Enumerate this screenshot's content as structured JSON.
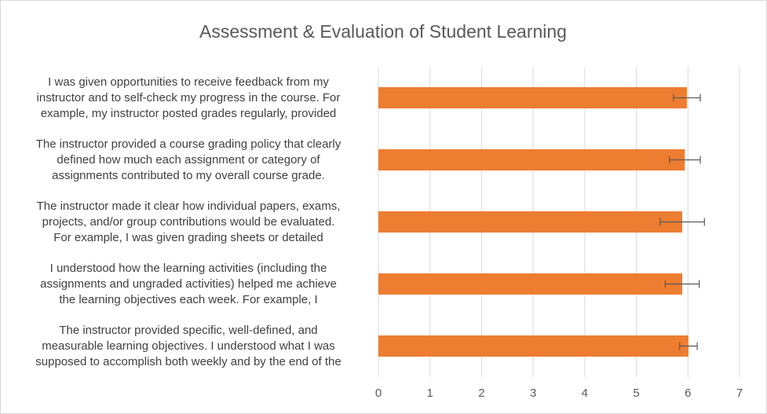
{
  "chart_data": {
    "type": "bar",
    "orientation": "horizontal",
    "title": "Assessment & Evaluation of Student Learning",
    "categories": [
      "I was given opportunities to receive feedback from my\ninstructor and to self-check my progress in the course. For\nexample, my instructor posted grades regularly, provided",
      "The instructor provided a course grading policy that clearly\ndefined how much each assignment or category of\nassignments contributed to my overall course grade.",
      "The instructor made it clear how individual papers, exams,\nprojects, and/or group contributions would be evaluated.\nFor example, I was given grading sheets or detailed",
      "I understood how the learning activities (including the\nassignments and ungraded activities) helped me achieve\nthe learning objectives each week. For example, I",
      "The instructor provided specific, well-defined, and\nmeasurable learning objectives. I understood what I was\nsupposed to accomplish both weekly and by the end of the"
    ],
    "values": [
      5.98,
      5.94,
      5.89,
      5.89,
      6.01
    ],
    "errors": [
      0.26,
      0.3,
      0.43,
      0.33,
      0.17
    ],
    "color": "#ed7d31",
    "xlim": [
      0,
      7
    ],
    "xticks": [
      0,
      1,
      2,
      3,
      4,
      5,
      6,
      7
    ],
    "grid": true
  }
}
